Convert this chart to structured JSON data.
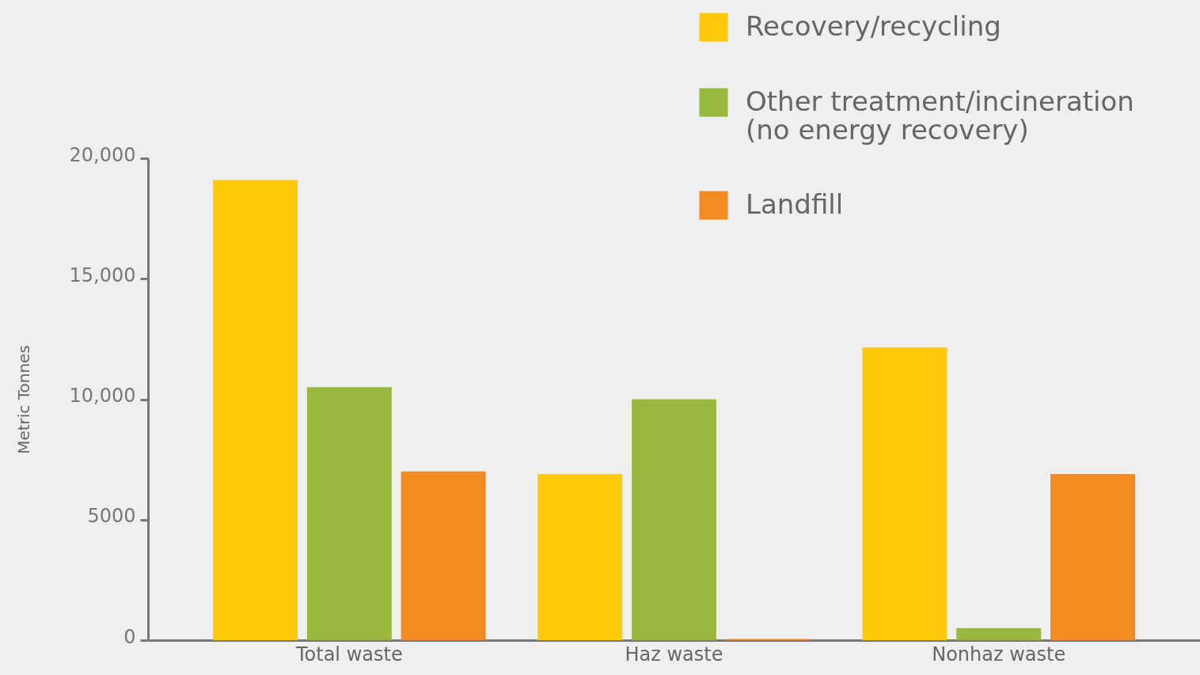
{
  "chart_data": {
    "type": "bar",
    "ylabel": "Metric Tonnes",
    "categories": [
      "Total waste",
      "Haz waste",
      "Nonhaz waste"
    ],
    "series": [
      {
        "name": "Recovery/recycling",
        "color": "#ffc907",
        "values": [
          19100,
          6900,
          12150
        ]
      },
      {
        "name": "Other treatment/incineration (no energy recovery)",
        "color": "#98b83e",
        "values": [
          10500,
          10000,
          500
        ]
      },
      {
        "name": "Landfill",
        "color": "#f48a22",
        "values": [
          7000,
          50,
          6900
        ]
      }
    ],
    "ylim": [
      0,
      20000
    ],
    "yticks": [
      0,
      5000,
      {
        "value": 10000,
        "label": "10,000"
      },
      {
        "value": 15000,
        "label": "15,000"
      },
      {
        "value": 20000,
        "label": "20,000"
      }
    ],
    "grid": false,
    "legend": "top right"
  }
}
